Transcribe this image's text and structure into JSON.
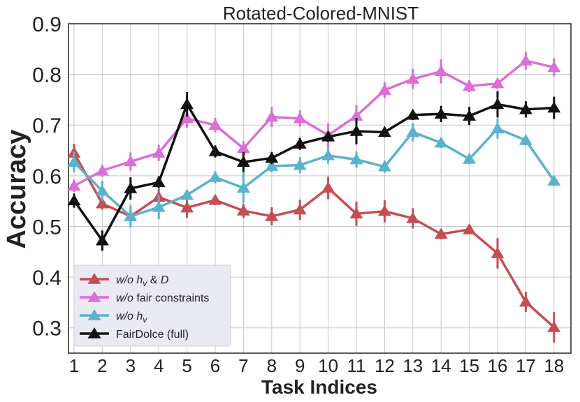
{
  "chart_data": {
    "type": "line",
    "title": "Rotated-Colored-MNIST",
    "xlabel": "Task Indices",
    "ylabel": "Accuracy",
    "x": [
      1,
      2,
      3,
      4,
      5,
      6,
      7,
      8,
      9,
      10,
      11,
      12,
      13,
      14,
      15,
      16,
      17,
      18
    ],
    "xticks": [
      "1",
      "2",
      "3",
      "4",
      "5",
      "6",
      "7",
      "8",
      "9",
      "10",
      "11",
      "12",
      "13",
      "14",
      "15",
      "16",
      "17",
      "18"
    ],
    "ylim": [
      0.25,
      0.9
    ],
    "yticks": [
      "0.3",
      "0.4",
      "0.5",
      "0.6",
      "0.7",
      "0.8",
      "0.9"
    ],
    "grid": true,
    "legend_position": "bottom-left",
    "series": [
      {
        "name": "w/o h_v & D",
        "legend_italic": "w/o h",
        "legend_sub": "v",
        "legend_rest": " & ",
        "legend_italic2": "D",
        "color": "#c44e52",
        "values": [
          0.645,
          0.545,
          0.52,
          0.558,
          0.537,
          0.552,
          0.531,
          0.52,
          0.533,
          0.576,
          0.525,
          0.53,
          0.516,
          0.485,
          0.494,
          0.447,
          0.351,
          0.301
        ],
        "errors": [
          0.018,
          0.012,
          0.012,
          0.016,
          0.02,
          0.01,
          0.014,
          0.018,
          0.02,
          0.022,
          0.024,
          0.022,
          0.02,
          0.01,
          0.01,
          0.03,
          0.02,
          0.03
        ]
      },
      {
        "name": "w/o fair constraints",
        "legend_italic": "w/o",
        "legend_rest": " fair constraints",
        "color": "#da6fd8",
        "values": [
          0.58,
          0.61,
          0.628,
          0.645,
          0.713,
          0.7,
          0.654,
          0.716,
          0.713,
          0.68,
          0.718,
          0.769,
          0.791,
          0.806,
          0.777,
          0.782,
          0.827,
          0.814
        ],
        "errors": [
          0.012,
          0.012,
          0.018,
          0.016,
          0.018,
          0.014,
          0.014,
          0.02,
          0.016,
          0.024,
          0.022,
          0.016,
          0.02,
          0.024,
          0.012,
          0.01,
          0.018,
          0.018
        ]
      },
      {
        "name": "w/o h_v",
        "legend_italic": "w/o h",
        "legend_sub": "v",
        "color": "#5ab2cc",
        "values": [
          0.627,
          0.57,
          0.52,
          0.538,
          0.562,
          0.597,
          0.576,
          0.619,
          0.621,
          0.64,
          0.632,
          0.618,
          0.686,
          0.665,
          0.633,
          0.693,
          0.67,
          0.59
        ],
        "errors": [
          0.02,
          0.02,
          0.022,
          0.024,
          0.01,
          0.012,
          0.03,
          0.012,
          0.016,
          0.016,
          0.016,
          0.012,
          0.018,
          0.01,
          0.01,
          0.02,
          0.01,
          0.01
        ]
      },
      {
        "name": "FairDolce (full)",
        "legend_rest": "FairDolce (full)",
        "color": "#111111",
        "values": [
          0.551,
          0.472,
          0.575,
          0.587,
          0.741,
          0.648,
          0.627,
          0.635,
          0.663,
          0.677,
          0.688,
          0.686,
          0.72,
          0.722,
          0.718,
          0.741,
          0.731,
          0.734
        ],
        "errors": [
          0.014,
          0.02,
          0.022,
          0.012,
          0.024,
          0.012,
          0.02,
          0.012,
          0.012,
          0.01,
          0.026,
          0.01,
          0.01,
          0.016,
          0.018,
          0.026,
          0.016,
          0.022
        ]
      }
    ]
  }
}
